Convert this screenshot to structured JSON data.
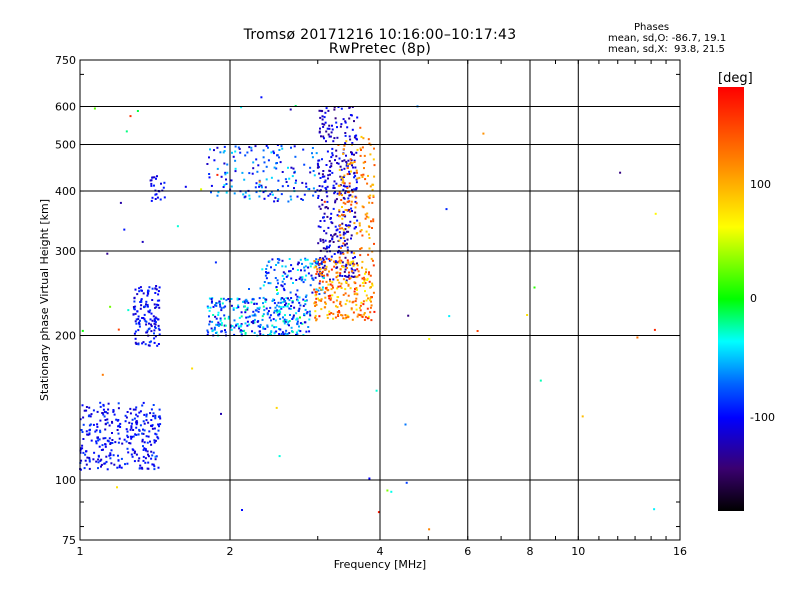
{
  "header": {
    "title_line1": "Tromsø 20171216 10:16:00–10:17:43",
    "title_line2": "RwPretec (8p)"
  },
  "phases": {
    "title": "Phases",
    "o_line": "mean, sd,O: -86.7, 19.1",
    "x_line": "mean, sd,X:  93.8, 21.5"
  },
  "colorbar": {
    "unit": "[deg]",
    "ticks": [
      "100",
      "0",
      "-100"
    ],
    "range": [
      -180,
      180
    ],
    "colors": [
      "#000000",
      "#3a0070",
      "#0000ff",
      "#0064ff",
      "#00ffff",
      "#00ff00",
      "#ffff00",
      "#ff7f00",
      "#ff0000"
    ]
  },
  "chart_data": {
    "type": "scatter",
    "xlabel": "Frequency [MHz]",
    "ylabel": "Stationary phase Virtual Height [km]",
    "x_scale": "log",
    "y_scale": "log",
    "xlim": [
      1,
      16
    ],
    "ylim": [
      75,
      750
    ],
    "x_ticks": [
      "1",
      "2",
      "4",
      "6",
      "8",
      "10",
      "16"
    ],
    "y_ticks": [
      "75",
      "100",
      "200",
      "300",
      "400",
      "500",
      "600",
      "750"
    ],
    "x_gridlines": [
      2,
      4,
      6,
      8,
      10
    ],
    "y_gridlines": [
      100,
      200,
      300,
      400,
      500,
      600
    ],
    "grid": true,
    "color_quantity": "phase [deg]",
    "clusters": [
      {
        "f": [
          1.0,
          1.45
        ],
        "h": [
          105,
          145
        ],
        "phase": [
          -120,
          -80
        ],
        "n": 300
      },
      {
        "f": [
          1.28,
          1.45
        ],
        "h": [
          190,
          255
        ],
        "phase": [
          -120,
          -80
        ],
        "n": 130
      },
      {
        "f": [
          1.38,
          1.48
        ],
        "h": [
          380,
          430
        ],
        "phase": [
          -120,
          -90
        ],
        "n": 25
      },
      {
        "f": [
          1.8,
          2.9
        ],
        "h": [
          200,
          240
        ],
        "phase": [
          -120,
          -20
        ],
        "n": 330
      },
      {
        "f": [
          2.3,
          3.1
        ],
        "h": [
          240,
          290
        ],
        "phase": [
          -120,
          -30
        ],
        "n": 120
      },
      {
        "f": [
          1.8,
          3.0
        ],
        "h": [
          380,
          500
        ],
        "phase": [
          -120,
          -40
        ],
        "n": 160
      },
      {
        "f": [
          3.0,
          3.6
        ],
        "h": [
          260,
          600
        ],
        "phase": [
          -140,
          -90
        ],
        "n": 350
      },
      {
        "f": [
          2.95,
          3.9
        ],
        "h": [
          215,
          290
        ],
        "phase": [
          60,
          170
        ],
        "n": 250
      },
      {
        "f": [
          3.3,
          3.9
        ],
        "h": [
          290,
          520
        ],
        "phase": [
          80,
          150
        ],
        "n": 140
      },
      {
        "f": [
          1.0,
          15.0
        ],
        "h": [
          78,
          650
        ],
        "phase": [
          -140,
          170
        ],
        "n": 60
      }
    ]
  }
}
